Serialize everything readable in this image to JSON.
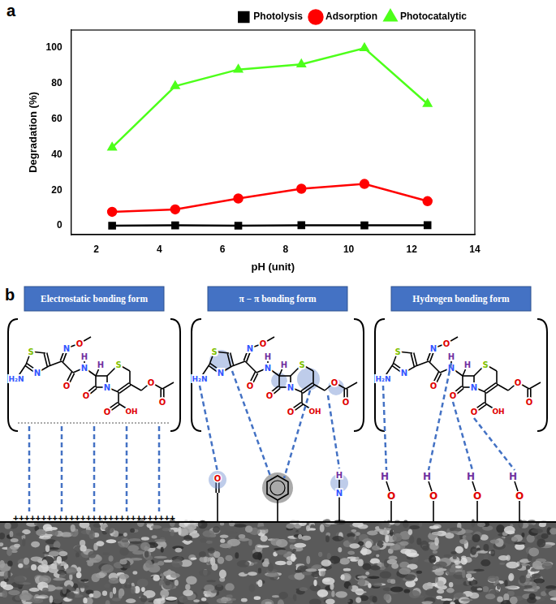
{
  "panel_labels": [
    "a",
    "b"
  ],
  "chart_data": {
    "type": "line",
    "title": null,
    "x_label": "pH (unit)",
    "y_label": "Degradation (%)",
    "x": [
      2.5,
      4.5,
      6.5,
      8.5,
      10.5,
      12.5
    ],
    "series": [
      {
        "name": "Photolysis",
        "color": "#000000",
        "marker": "square",
        "values": [
          0,
          0.2,
          0,
          0.3,
          0.2,
          0.3
        ]
      },
      {
        "name": "Adsorption",
        "color": "#ff0000",
        "marker": "circle",
        "values": [
          7.8,
          9.2,
          15.3,
          20.8,
          23.5,
          13.8
        ]
      },
      {
        "name": "Photocatalytic",
        "color": "#4dff1a",
        "marker": "triangle",
        "values": [
          44,
          78.5,
          87.8,
          90.7,
          99.8,
          68.5
        ]
      }
    ],
    "xlim": [
      1.2,
      14
    ],
    "xticks": [
      2,
      4,
      6,
      8,
      10,
      12,
      14
    ],
    "ylim": [
      -5,
      110
    ],
    "yticks": [
      0,
      20,
      40,
      60,
      80,
      100
    ],
    "grid": false,
    "legend": "upper right"
  },
  "diagram": {
    "molecule_atoms": [
      "S",
      "H₂N",
      "N",
      "N",
      "O",
      "O",
      "N",
      "H",
      "H",
      "N",
      "O",
      "S",
      "O",
      "OH",
      "O",
      "O"
    ],
    "panels": [
      {
        "title": "Electrostatic bonding form",
        "surface_text": "+++++++++++++++++++++++++++++"
      },
      {
        "title": "π − π bonding form",
        "surface_groups": [
          "O",
          "N",
          "H"
        ]
      },
      {
        "title": "Hydrogen bonding form",
        "surface_groups": [
          [
            "H",
            "O"
          ],
          [
            "H",
            "O"
          ],
          [
            "H",
            "O"
          ],
          [
            "H",
            "O"
          ]
        ]
      }
    ]
  }
}
